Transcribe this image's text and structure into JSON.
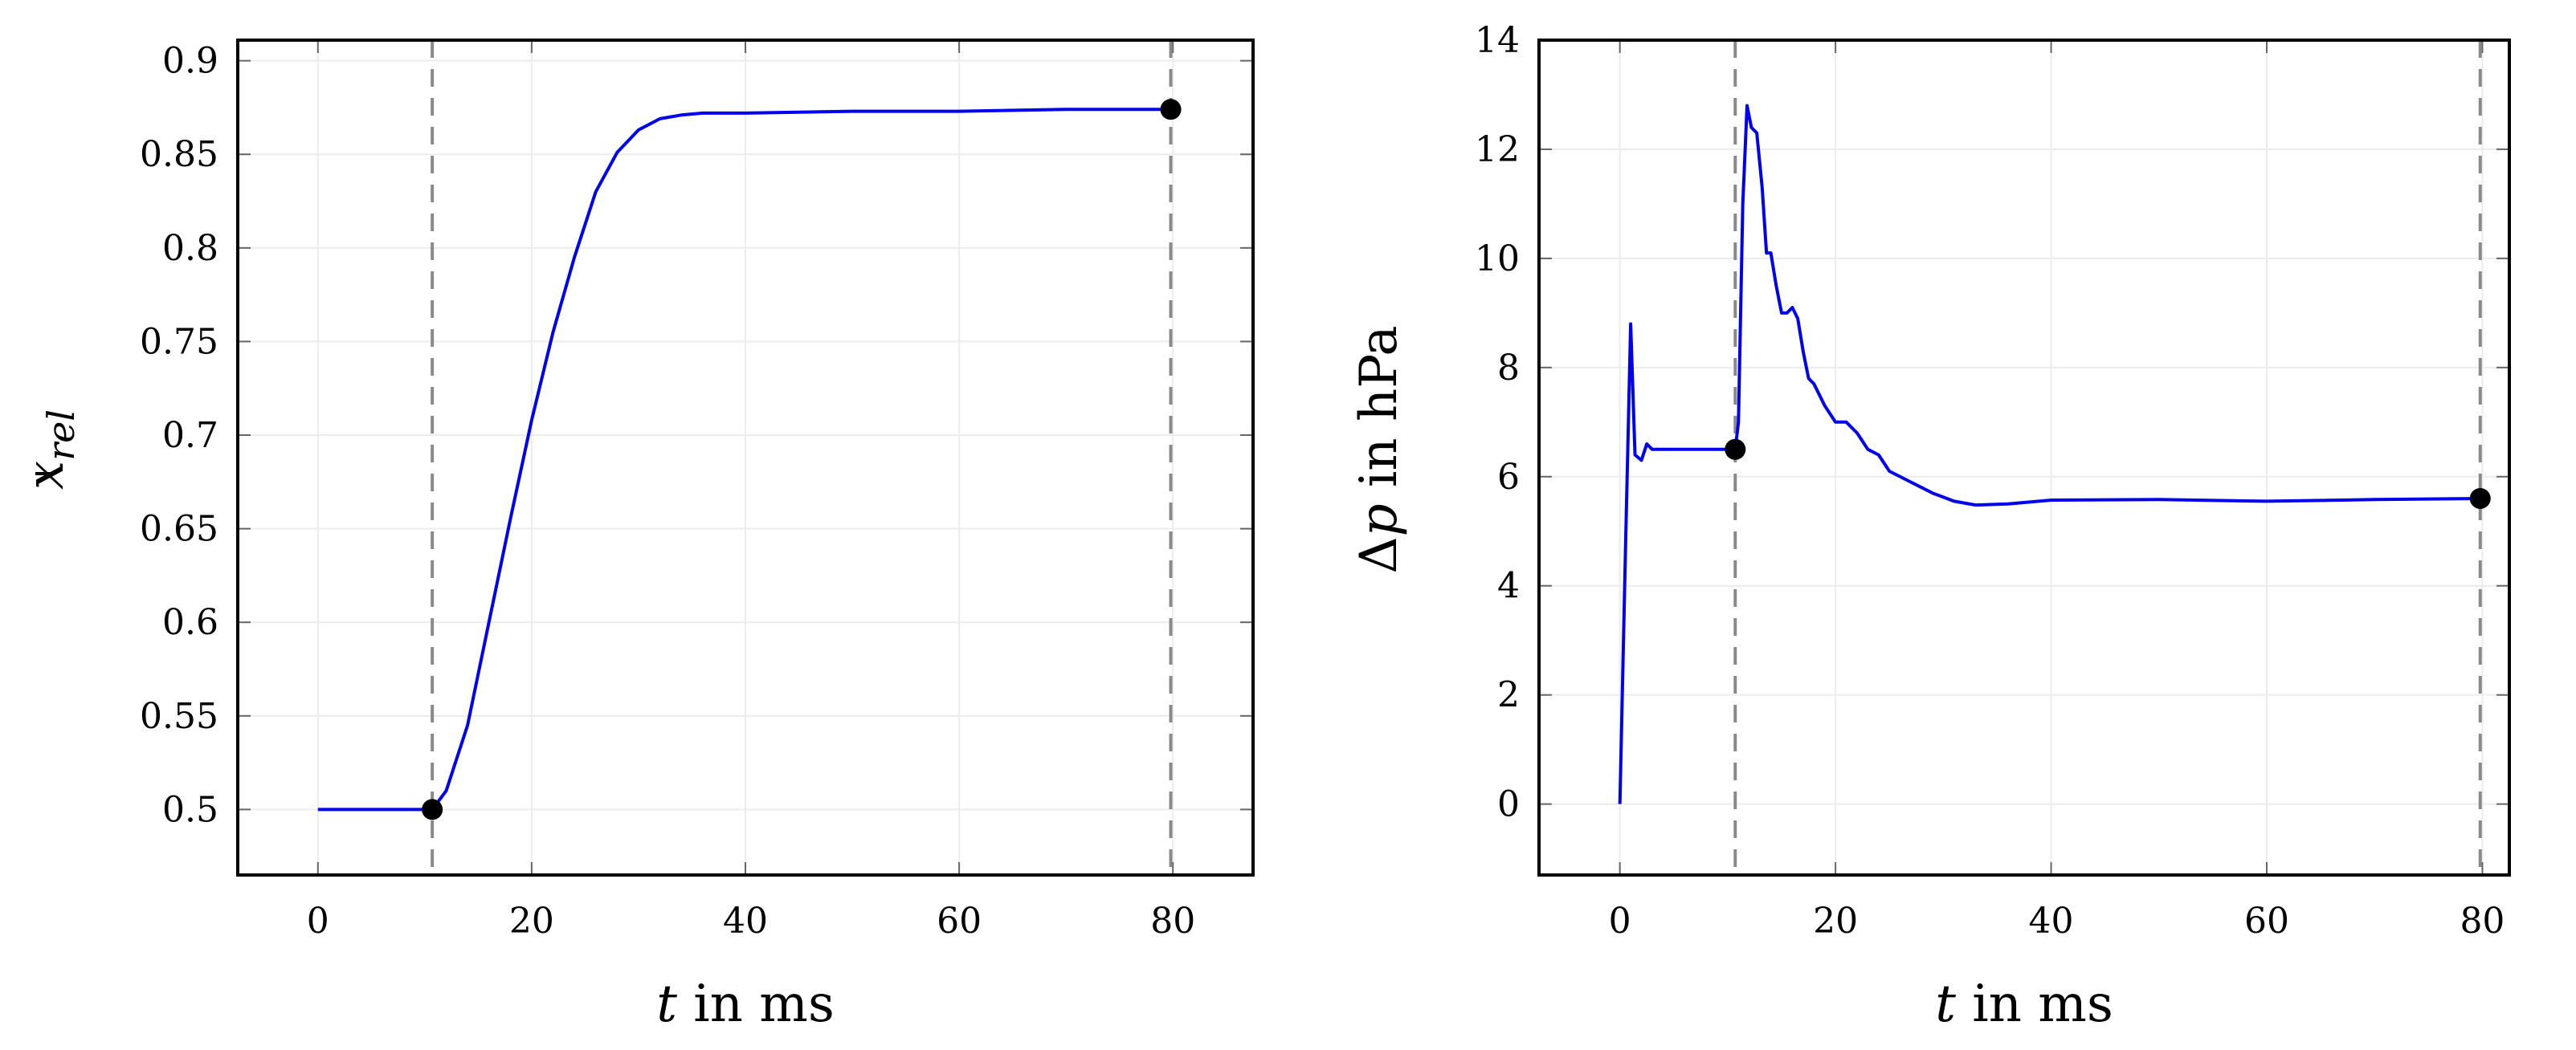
{
  "chart_data": [
    {
      "type": "line",
      "title": "",
      "xlabel": {
        "var": "t",
        "rest": " in ms"
      },
      "ylabel": {
        "var": "x",
        "sub": "rel"
      },
      "xlim": [
        -7.5,
        87.5
      ],
      "ylim": [
        0.465,
        0.911
      ],
      "xticks": [
        0,
        20,
        40,
        60,
        80
      ],
      "yticks": [
        0.5,
        0.55,
        0.6,
        0.65,
        0.7,
        0.75,
        0.8,
        0.85,
        0.9
      ],
      "xtick_labels": [
        "0",
        "20",
        "40",
        "60",
        "80"
      ],
      "ytick_labels": [
        "0.5",
        "0.55",
        "0.6",
        "0.65",
        "0.7",
        "0.75",
        "0.8",
        "0.85",
        "0.9"
      ],
      "grid": true,
      "line_color": "#0000ee",
      "vlines": [
        10.7,
        79.8
      ],
      "markers": [
        {
          "x": 10.7,
          "y": 0.5
        },
        {
          "x": 79.8,
          "y": 0.874
        }
      ],
      "series": [
        {
          "x": [
            0,
            5,
            10.7,
            12,
            14,
            16,
            18,
            20,
            22,
            24,
            26,
            28,
            30,
            32,
            34,
            36,
            38,
            40,
            50,
            60,
            70,
            79.8
          ],
          "values": [
            0.5,
            0.5,
            0.5,
            0.51,
            0.545,
            0.6,
            0.655,
            0.708,
            0.755,
            0.795,
            0.83,
            0.851,
            0.863,
            0.869,
            0.871,
            0.872,
            0.872,
            0.872,
            0.873,
            0.873,
            0.874,
            0.874
          ]
        }
      ]
    },
    {
      "type": "line",
      "title": "",
      "xlabel": {
        "var": "t",
        "rest": " in ms"
      },
      "ylabel": {
        "var": "p",
        "prefix": "Δ",
        "rest": " in hPa"
      },
      "xlim": [
        -7.5,
        82.5
      ],
      "ylim": [
        -1.3,
        14
      ],
      "xticks": [
        0,
        20,
        40,
        60,
        80
      ],
      "yticks": [
        0,
        2,
        4,
        6,
        8,
        10,
        12,
        14
      ],
      "xtick_labels": [
        "0",
        "20",
        "40",
        "60",
        "80"
      ],
      "ytick_labels": [
        "0",
        "2",
        "4",
        "6",
        "8",
        "10",
        "12",
        "14"
      ],
      "grid": true,
      "line_color": "#0000ee",
      "vlines": [
        10.7,
        79.8
      ],
      "markers": [
        {
          "x": 10.7,
          "y": 6.5
        },
        {
          "x": 79.8,
          "y": 5.6
        }
      ],
      "series": [
        {
          "x": [
            0,
            0.5,
            1.0,
            1.4,
            2.0,
            2.5,
            3.0,
            5,
            8,
            10.7,
            11.0,
            11.4,
            11.8,
            12.2,
            12.7,
            13.2,
            13.6,
            14.0,
            14.5,
            15.0,
            15.5,
            16.0,
            16.5,
            17.0,
            17.5,
            18.0,
            19.0,
            20.0,
            21.0,
            22.0,
            23.0,
            24.0,
            25.0,
            27.0,
            29.0,
            31.0,
            33.0,
            36,
            40,
            50,
            60,
            70,
            79.8
          ],
          "values": [
            0,
            4.5,
            8.8,
            6.4,
            6.3,
            6.6,
            6.5,
            6.5,
            6.5,
            6.5,
            7.0,
            11.0,
            12.8,
            12.4,
            12.3,
            11.3,
            10.1,
            10.1,
            9.5,
            9.0,
            9.0,
            9.1,
            8.9,
            8.3,
            7.8,
            7.7,
            7.3,
            7.0,
            7.0,
            6.8,
            6.5,
            6.4,
            6.1,
            5.9,
            5.7,
            5.55,
            5.48,
            5.5,
            5.57,
            5.58,
            5.55,
            5.58,
            5.6
          ]
        }
      ]
    }
  ]
}
